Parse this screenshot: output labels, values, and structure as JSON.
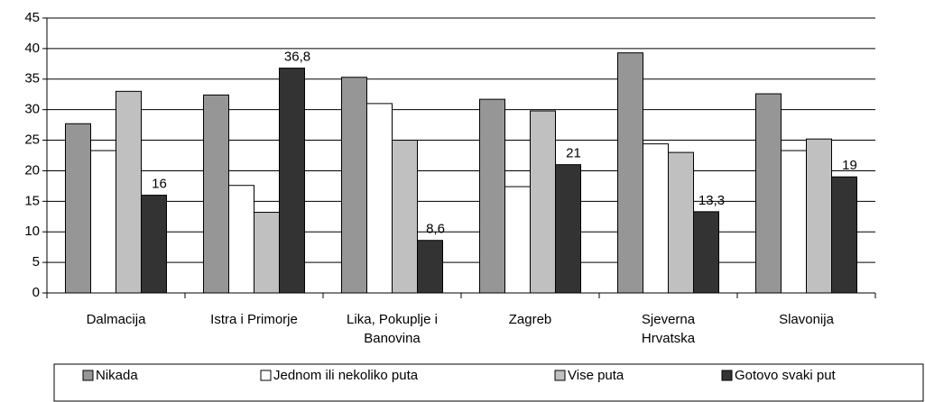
{
  "chart_data": {
    "type": "bar",
    "categories": [
      "Dalmacija",
      "Istra i Primorje",
      "Lika, Pokuplje i\nBanovina",
      "Zagreb",
      "Sjeverna\nHrvatska",
      "Slavonija"
    ],
    "series": [
      {
        "name": "Nikada",
        "color": "#969696",
        "values": [
          27.7,
          32.4,
          35.3,
          31.7,
          39.3,
          32.6
        ]
      },
      {
        "name": "Jednom ili nekoliko puta",
        "color": "#ffffff",
        "values": [
          23.3,
          17.6,
          31,
          17.4,
          24.4,
          23.3
        ]
      },
      {
        "name": "Vise puta",
        "color": "#c0c0c0",
        "values": [
          33,
          13.2,
          25,
          29.8,
          23,
          25.2
        ]
      },
      {
        "name": "Gotovo svaki put",
        "color": "#333333",
        "values": [
          16,
          36.8,
          8.6,
          21,
          13.3,
          19
        ],
        "value_labels": [
          "16",
          "36,8",
          "8,6",
          "21",
          "13,3",
          "19"
        ]
      }
    ],
    "ylim": [
      0,
      45
    ],
    "yticks": [
      0,
      5,
      10,
      15,
      20,
      25,
      30,
      35,
      40,
      45
    ],
    "grid": true,
    "legend": "bottom"
  }
}
